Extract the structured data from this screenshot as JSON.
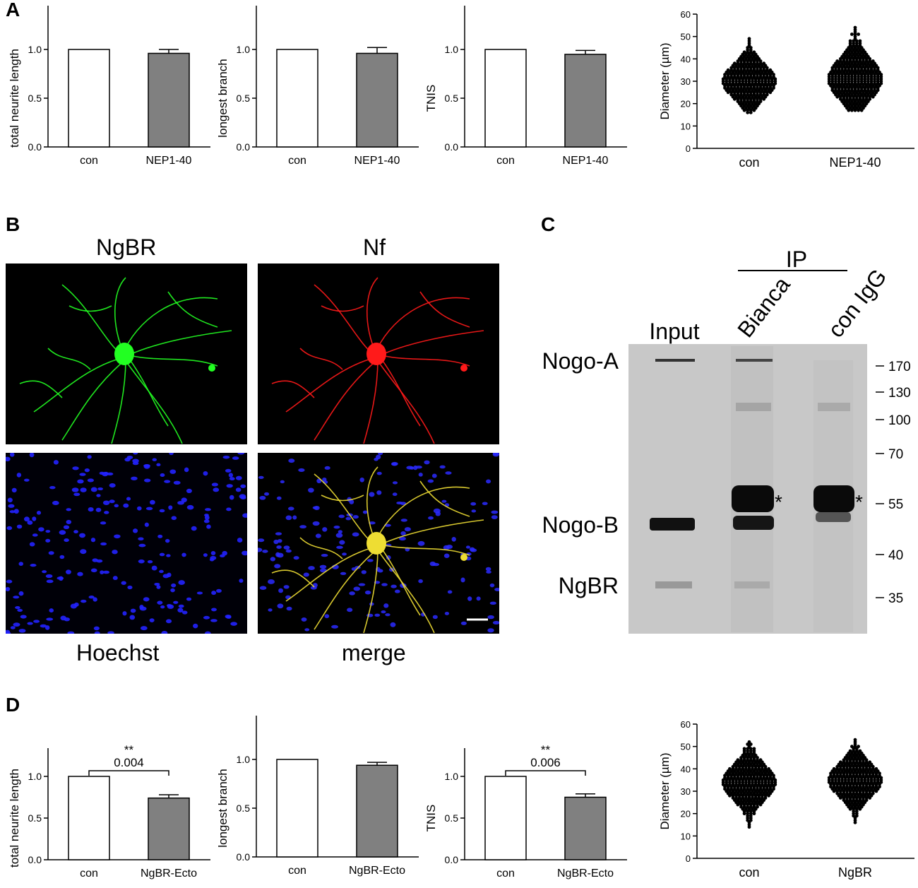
{
  "panels": {
    "A": "A",
    "B": "B",
    "C": "C",
    "D": "D"
  },
  "chart_data": [
    {
      "id": "A1",
      "type": "bar",
      "categories": [
        "con",
        "NEP1-40"
      ],
      "values": [
        1.0,
        0.96
      ],
      "errors": [
        0,
        0.04
      ],
      "ylabel": "total neurite length",
      "ylim": [
        0,
        1.0
      ],
      "yticks": [
        "0.0",
        "0.5",
        "1.0"
      ]
    },
    {
      "id": "A2",
      "type": "bar",
      "categories": [
        "con",
        "NEP1-40"
      ],
      "values": [
        1.0,
        0.96
      ],
      "errors": [
        0,
        0.06
      ],
      "ylabel": "longest branch",
      "ylim": [
        0,
        1.0
      ],
      "yticks": [
        "0.0",
        "0.5",
        "1.0"
      ]
    },
    {
      "id": "A3",
      "type": "bar",
      "categories": [
        "con",
        "NEP1-40"
      ],
      "values": [
        1.0,
        0.95
      ],
      "errors": [
        0,
        0.04
      ],
      "ylabel": "TNIS",
      "ylim": [
        0,
        1.0
      ],
      "yticks": [
        "0.0",
        "0.5",
        "1.0"
      ]
    },
    {
      "id": "A4",
      "type": "scatter",
      "categories": [
        "con",
        "NEP1-40"
      ],
      "ylabel": "Diameter (µm)",
      "ylim": [
        0,
        60
      ],
      "yticks": [
        "0",
        "10",
        "20",
        "30",
        "40",
        "50",
        "60"
      ],
      "ranges": [
        [
          16,
          49
        ],
        [
          17,
          54
        ]
      ],
      "center": [
        30,
        31
      ]
    },
    {
      "id": "D1",
      "type": "bar",
      "categories": [
        "con",
        "NgBR-Ecto"
      ],
      "values": [
        1.0,
        0.74
      ],
      "errors": [
        0,
        0.04
      ],
      "ylabel": "total neurite length",
      "ylim": [
        0,
        1.0
      ],
      "yticks": [
        "0.0",
        "0.5",
        "1.0"
      ],
      "sig_stars": "**",
      "sig_p": "0.004"
    },
    {
      "id": "D2",
      "type": "bar",
      "categories": [
        "con",
        "NgBR-Ecto"
      ],
      "values": [
        1.0,
        0.94
      ],
      "errors": [
        0,
        0.03
      ],
      "ylabel": "longest branch",
      "ylim": [
        0,
        1.0
      ],
      "yticks": [
        "0.0",
        "0.5",
        "1.0"
      ]
    },
    {
      "id": "D3",
      "type": "bar",
      "categories": [
        "con",
        "NgBR-Ecto"
      ],
      "values": [
        1.0,
        0.75
      ],
      "errors": [
        0,
        0.04
      ],
      "ylabel": "TNIS",
      "ylim": [
        0,
        1.0
      ],
      "yticks": [
        "0.0",
        "0.5",
        "1.0"
      ],
      "sig_stars": "**",
      "sig_p": "0.006"
    },
    {
      "id": "D4",
      "type": "scatter",
      "categories": [
        "con",
        "NgBR"
      ],
      "ylabel": "Diameter (µm)",
      "ylim": [
        0,
        60
      ],
      "yticks": [
        "0",
        "10",
        "20",
        "30",
        "40",
        "50",
        "60"
      ],
      "ranges": [
        [
          14,
          52
        ],
        [
          16,
          53
        ]
      ],
      "center": [
        34,
        35
      ]
    }
  ],
  "micrographs": {
    "ngbr": "NgBR",
    "nf": "Nf",
    "hoechst": "Hoechst",
    "merge": "merge",
    "colors": {
      "green": "#22ff22",
      "red": "#ff1a1a",
      "blue": "#2222ff",
      "merge": "#eedd33"
    }
  },
  "blot": {
    "ip": "IP",
    "lanes": [
      "Input",
      "Bianca",
      "con IgG"
    ],
    "proteins": [
      "Nogo-A",
      "Nogo-B",
      "NgBR"
    ],
    "markers": [
      "170",
      "130",
      "100",
      "70",
      "55",
      "40",
      "35"
    ],
    "star": "*"
  }
}
